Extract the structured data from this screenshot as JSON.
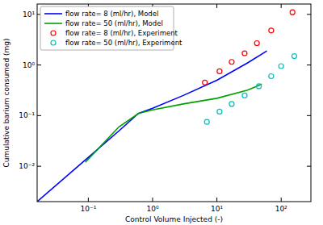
{
  "chart_data": {
    "type": "line",
    "x_label": "Control Volume Injected (-)",
    "y_label": "Cumulative barium consumed (mg)",
    "log": true,
    "grid": false,
    "legend": "upper left",
    "xlim": [
      0.016,
      290
    ],
    "ylim": [
      0.002,
      16
    ],
    "xticks": [
      {
        "value": 0.1,
        "label": "10⁻¹"
      },
      {
        "value": 1,
        "label": "10⁰"
      },
      {
        "value": 10,
        "label": "10¹"
      },
      {
        "value": 100,
        "label": "10²"
      }
    ],
    "yticks": [
      {
        "value": 0.01,
        "label": "10⁻²"
      },
      {
        "value": 0.1,
        "label": "10⁻¹"
      },
      {
        "value": 1,
        "label": "10⁰"
      },
      {
        "value": 10,
        "label": "10¹"
      }
    ],
    "series": [
      {
        "name": "flow rate= 8 (ml/hr), Model",
        "type": "line",
        "color": "#0000ff",
        "line_style": "solid",
        "x": [
          0.016,
          0.1,
          0.3,
          0.6,
          1,
          3,
          10,
          30,
          60
        ],
        "values": [
          0.002,
          0.015,
          0.05,
          0.11,
          0.14,
          0.25,
          0.5,
          1.1,
          1.9
        ]
      },
      {
        "name": "flow rate= 50 (ml/hr), Model",
        "type": "line",
        "color": "#00a000",
        "line_style": "solid",
        "x": [
          0.09,
          0.3,
          0.6,
          1,
          3,
          10,
          30,
          50
        ],
        "values": [
          0.012,
          0.06,
          0.11,
          0.13,
          0.17,
          0.22,
          0.32,
          0.42
        ]
      },
      {
        "name": "flow rate= 8 (ml/hr), Experiment",
        "type": "scatter",
        "color": "#ff0000",
        "marker": "circle",
        "x": [
          6.5,
          11,
          17,
          27,
          42,
          70,
          150
        ],
        "values": [
          0.45,
          0.75,
          1.15,
          1.7,
          2.7,
          4.8,
          11
        ]
      },
      {
        "name": "flow rate= 50 (ml/hr), Experiment",
        "type": "scatter",
        "color": "#00bfbf",
        "marker": "circle",
        "x": [
          7,
          11,
          17,
          27,
          45,
          70,
          100,
          160
        ],
        "values": [
          0.075,
          0.12,
          0.17,
          0.25,
          0.38,
          0.6,
          0.95,
          1.5
        ]
      }
    ]
  }
}
